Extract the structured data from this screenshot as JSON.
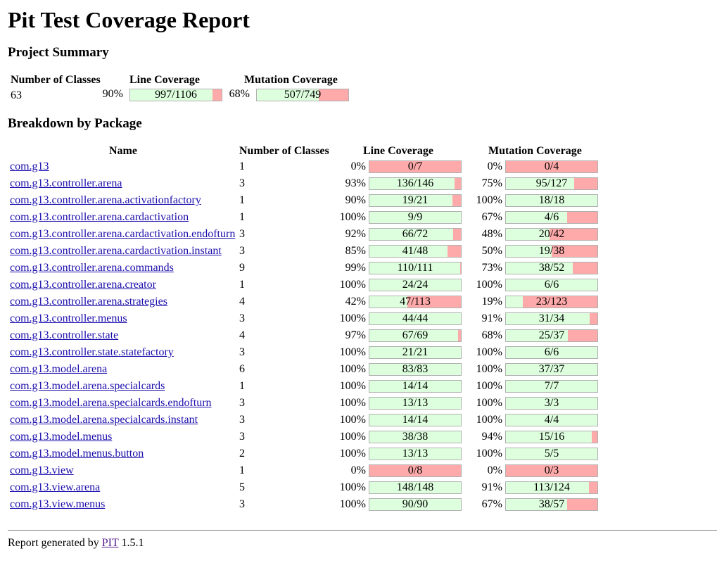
{
  "title": "Pit Test Coverage Report",
  "summary": {
    "heading": "Project Summary",
    "headers": {
      "classes": "Number of Classes",
      "line": "Line Coverage",
      "mutation": "Mutation Coverage"
    },
    "classes": "63",
    "line_pct": "90%",
    "line_frac": "997/1106",
    "line_ratio": 0.9014,
    "mut_pct": "68%",
    "mut_frac": "507/749",
    "mut_ratio": 0.6769
  },
  "breakdown": {
    "heading": "Breakdown by Package",
    "headers": {
      "name": "Name",
      "classes": "Number of Classes",
      "line": "Line Coverage",
      "mutation": "Mutation Coverage"
    },
    "rows": [
      {
        "name": "com.g13",
        "classes": "1",
        "line_pct": "0%",
        "line_frac": "0/7",
        "line_ratio": 0,
        "mut_pct": "0%",
        "mut_frac": "0/4",
        "mut_ratio": 0
      },
      {
        "name": "com.g13.controller.arena",
        "classes": "3",
        "line_pct": "93%",
        "line_frac": "136/146",
        "line_ratio": 0.9315,
        "mut_pct": "75%",
        "mut_frac": "95/127",
        "mut_ratio": 0.748
      },
      {
        "name": "com.g13.controller.arena.activationfactory",
        "classes": "1",
        "line_pct": "90%",
        "line_frac": "19/21",
        "line_ratio": 0.9048,
        "mut_pct": "100%",
        "mut_frac": "18/18",
        "mut_ratio": 1
      },
      {
        "name": "com.g13.controller.arena.cardactivation",
        "classes": "1",
        "line_pct": "100%",
        "line_frac": "9/9",
        "line_ratio": 1,
        "mut_pct": "67%",
        "mut_frac": "4/6",
        "mut_ratio": 0.6667
      },
      {
        "name": "com.g13.controller.arena.cardactivation.endofturn",
        "classes": "3",
        "line_pct": "92%",
        "line_frac": "66/72",
        "line_ratio": 0.9167,
        "mut_pct": "48%",
        "mut_frac": "20/42",
        "mut_ratio": 0.4762
      },
      {
        "name": "com.g13.controller.arena.cardactivation.instant",
        "classes": "3",
        "line_pct": "85%",
        "line_frac": "41/48",
        "line_ratio": 0.8542,
        "mut_pct": "50%",
        "mut_frac": "19/38",
        "mut_ratio": 0.5
      },
      {
        "name": "com.g13.controller.arena.commands",
        "classes": "9",
        "line_pct": "99%",
        "line_frac": "110/111",
        "line_ratio": 0.991,
        "mut_pct": "73%",
        "mut_frac": "38/52",
        "mut_ratio": 0.7308
      },
      {
        "name": "com.g13.controller.arena.creator",
        "classes": "1",
        "line_pct": "100%",
        "line_frac": "24/24",
        "line_ratio": 1,
        "mut_pct": "100%",
        "mut_frac": "6/6",
        "mut_ratio": 1
      },
      {
        "name": "com.g13.controller.arena.strategies",
        "classes": "4",
        "line_pct": "42%",
        "line_frac": "47/113",
        "line_ratio": 0.4159,
        "mut_pct": "19%",
        "mut_frac": "23/123",
        "mut_ratio": 0.187
      },
      {
        "name": "com.g13.controller.menus",
        "classes": "3",
        "line_pct": "100%",
        "line_frac": "44/44",
        "line_ratio": 1,
        "mut_pct": "91%",
        "mut_frac": "31/34",
        "mut_ratio": 0.9118
      },
      {
        "name": "com.g13.controller.state",
        "classes": "4",
        "line_pct": "97%",
        "line_frac": "67/69",
        "line_ratio": 0.971,
        "mut_pct": "68%",
        "mut_frac": "25/37",
        "mut_ratio": 0.6757
      },
      {
        "name": "com.g13.controller.state.statefactory",
        "classes": "3",
        "line_pct": "100%",
        "line_frac": "21/21",
        "line_ratio": 1,
        "mut_pct": "100%",
        "mut_frac": "6/6",
        "mut_ratio": 1
      },
      {
        "name": "com.g13.model.arena",
        "classes": "6",
        "line_pct": "100%",
        "line_frac": "83/83",
        "line_ratio": 1,
        "mut_pct": "100%",
        "mut_frac": "37/37",
        "mut_ratio": 1
      },
      {
        "name": "com.g13.model.arena.specialcards",
        "classes": "1",
        "line_pct": "100%",
        "line_frac": "14/14",
        "line_ratio": 1,
        "mut_pct": "100%",
        "mut_frac": "7/7",
        "mut_ratio": 1
      },
      {
        "name": "com.g13.model.arena.specialcards.endofturn",
        "classes": "3",
        "line_pct": "100%",
        "line_frac": "13/13",
        "line_ratio": 1,
        "mut_pct": "100%",
        "mut_frac": "3/3",
        "mut_ratio": 1
      },
      {
        "name": "com.g13.model.arena.specialcards.instant",
        "classes": "3",
        "line_pct": "100%",
        "line_frac": "14/14",
        "line_ratio": 1,
        "mut_pct": "100%",
        "mut_frac": "4/4",
        "mut_ratio": 1
      },
      {
        "name": "com.g13.model.menus",
        "classes": "3",
        "line_pct": "100%",
        "line_frac": "38/38",
        "line_ratio": 1,
        "mut_pct": "94%",
        "mut_frac": "15/16",
        "mut_ratio": 0.9375
      },
      {
        "name": "com.g13.model.menus.button",
        "classes": "2",
        "line_pct": "100%",
        "line_frac": "13/13",
        "line_ratio": 1,
        "mut_pct": "100%",
        "mut_frac": "5/5",
        "mut_ratio": 1
      },
      {
        "name": "com.g13.view",
        "classes": "1",
        "line_pct": "0%",
        "line_frac": "0/8",
        "line_ratio": 0,
        "mut_pct": "0%",
        "mut_frac": "0/3",
        "mut_ratio": 0
      },
      {
        "name": "com.g13.view.arena",
        "classes": "5",
        "line_pct": "100%",
        "line_frac": "148/148",
        "line_ratio": 1,
        "mut_pct": "91%",
        "mut_frac": "113/124",
        "mut_ratio": 0.9113
      },
      {
        "name": "com.g13.view.menus",
        "classes": "3",
        "line_pct": "100%",
        "line_frac": "90/90",
        "line_ratio": 1,
        "mut_pct": "67%",
        "mut_frac": "38/57",
        "mut_ratio": 0.6667
      }
    ]
  },
  "footer": {
    "prefix": "Report generated by",
    "link": "PIT",
    "version": "1.5.1"
  },
  "colors": {
    "covered": "#ddffdd",
    "uncovered": "#ffaaaa"
  }
}
